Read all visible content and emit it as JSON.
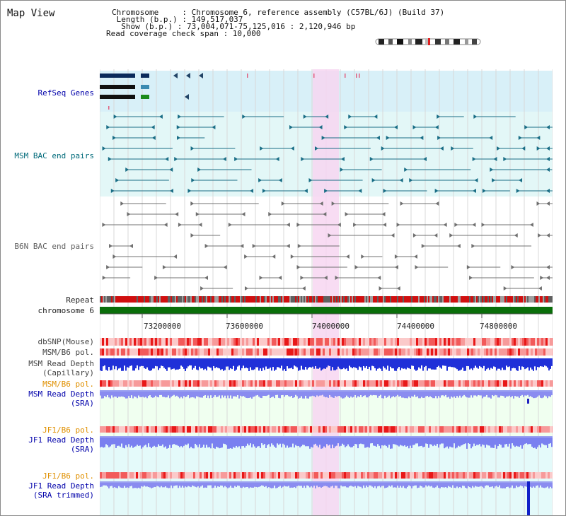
{
  "page": {
    "title": "Map View"
  },
  "header": {
    "chromosome_label": "Chromosome     : Chromosome 6, reference assembly (C57BL/6J) (Build 37)",
    "length_label": " Length (b.p.) : 149,517,037",
    "show_label": "  Show (b.p.) : 73,004,071-75,125,016 : 2,120,946 bp",
    "coverage_label": "Read coverage check span : 10,000"
  },
  "tracks": {
    "refseq": "RefSeq Genes",
    "msm_bac": "MSM BAC end pairs",
    "b6n_bac": "B6N BAC end pairs",
    "repeat": "Repeat",
    "chromosome": "chromosome 6",
    "dbsnp": "dbSNP(Mouse)",
    "msm_b6_pol": "MSM/B6 pol.",
    "msm_depth_cap_1": "MSM Read Depth",
    "msm_depth_cap_2": "(Capillary)",
    "msm_b6_pol2": "MSM/B6 pol.",
    "msm_depth_sra_1": "MSM Read Depth",
    "msm_depth_sra_2": "(SRA)",
    "jf1_pol": "JF1/B6 pol.",
    "jf1_depth_1": "JF1 Read Depth",
    "jf1_depth_2": "(SRA)",
    "jf1_pol2": "JF1/B6 pol.",
    "jf1_trim_1": "JF1 Read Depth",
    "jf1_trim_2": "(SRA trimmed)"
  },
  "axis": {
    "ticks": [
      "73200000",
      "73600000",
      "74000000",
      "74400000",
      "74800000"
    ]
  },
  "colors": {
    "refseq_label": "#0000aa",
    "msm_label": "#006a7a",
    "b6n_label": "#606060",
    "pol_label": "#e09000",
    "depth_label": "#0000aa",
    "highlight": "#f7d6f1",
    "chromosome_bar": "#0a6e0a"
  }
}
